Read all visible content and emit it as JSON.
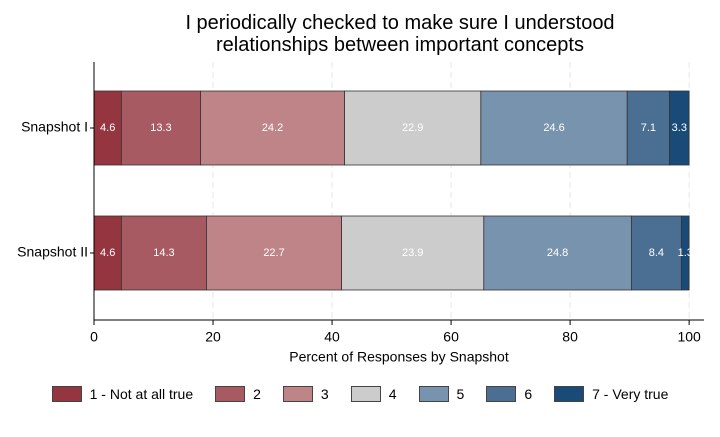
{
  "chart_data": {
    "type": "stacked-bar-horizontal",
    "title": "I periodically checked to make sure I understood relationships between important concepts",
    "xlabel": "Percent of Responses by Snapshot",
    "categories": [
      "Snapshot I",
      "Snapshot II"
    ],
    "series": [
      {
        "name": "1 - Not at all true",
        "color": "#953540",
        "values": [
          4.6,
          4.6
        ]
      },
      {
        "name": "2",
        "color": "#a85a62",
        "values": [
          13.3,
          14.3
        ]
      },
      {
        "name": "3",
        "color": "#be8488",
        "values": [
          24.2,
          22.7
        ]
      },
      {
        "name": "4",
        "color": "#cccccc",
        "values": [
          22.9,
          23.9
        ]
      },
      {
        "name": "5",
        "color": "#7893ad",
        "values": [
          24.6,
          24.8
        ]
      },
      {
        "name": "6",
        "color": "#4a6f93",
        "values": [
          7.1,
          8.4
        ]
      },
      {
        "name": "7 - Very true",
        "color": "#1a4a78",
        "values": [
          3.3,
          1.3
        ]
      }
    ],
    "xlim": [
      0,
      102.5
    ],
    "xticks": [
      0,
      20,
      40,
      60,
      80,
      100
    ],
    "grid": true
  }
}
